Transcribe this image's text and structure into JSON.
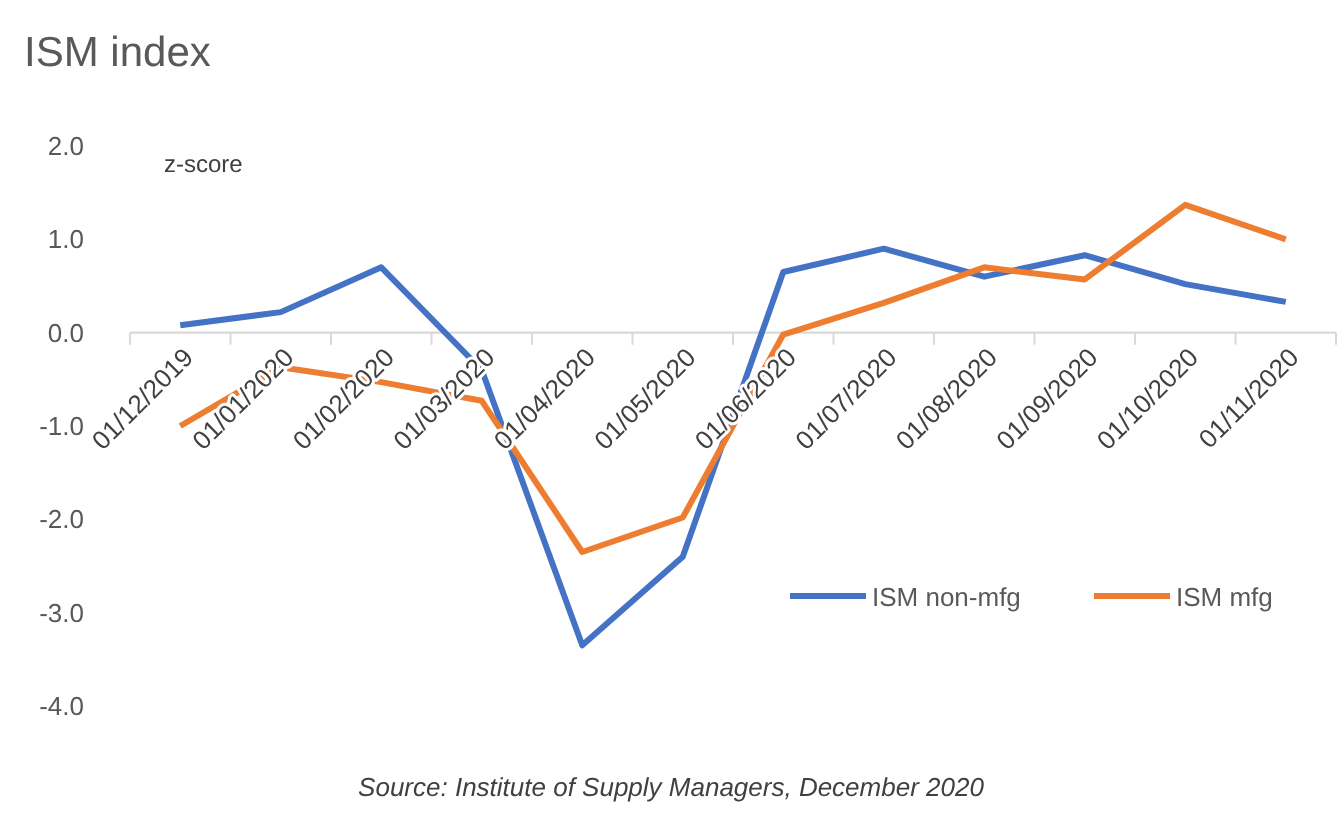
{
  "chart_data": {
    "type": "line",
    "title": "ISM index",
    "ylabel": "z-score",
    "categories": [
      "01/12/2019",
      "01/01/2020",
      "01/02/2020",
      "01/03/2020",
      "01/04/2020",
      "01/05/2020",
      "01/06/2020",
      "01/07/2020",
      "01/08/2020",
      "01/09/2020",
      "01/10/2020",
      "01/11/2020"
    ],
    "series": [
      {
        "name": "ISM non-mfg",
        "color": "#4472c4",
        "values": [
          0.08,
          0.22,
          0.7,
          -0.4,
          -3.35,
          -2.4,
          0.65,
          0.9,
          0.6,
          0.83,
          0.52,
          0.33
        ]
      },
      {
        "name": "ISM mfg",
        "color": "#ed7d31",
        "values": [
          -1.0,
          -0.37,
          -0.53,
          -0.73,
          -2.35,
          -1.98,
          -0.02,
          0.32,
          0.7,
          0.57,
          1.37,
          1.0
        ]
      }
    ],
    "ylim": [
      -4,
      2
    ],
    "yticks": [
      {
        "value": -4,
        "label": "-4.0"
      },
      {
        "value": -3,
        "label": "-3.0"
      },
      {
        "value": -2,
        "label": "-2.0"
      },
      {
        "value": -1,
        "label": "-1.0"
      },
      {
        "value": 0,
        "label": "0.0"
      },
      {
        "value": 1,
        "label": "1.0"
      },
      {
        "value": 2,
        "label": "2.0"
      }
    ],
    "grid": false,
    "legend": "bottom right",
    "marker": "none",
    "line_style": "solid",
    "annotations": [
      "Source: Institute of Supply Managers, December 2020"
    ]
  }
}
